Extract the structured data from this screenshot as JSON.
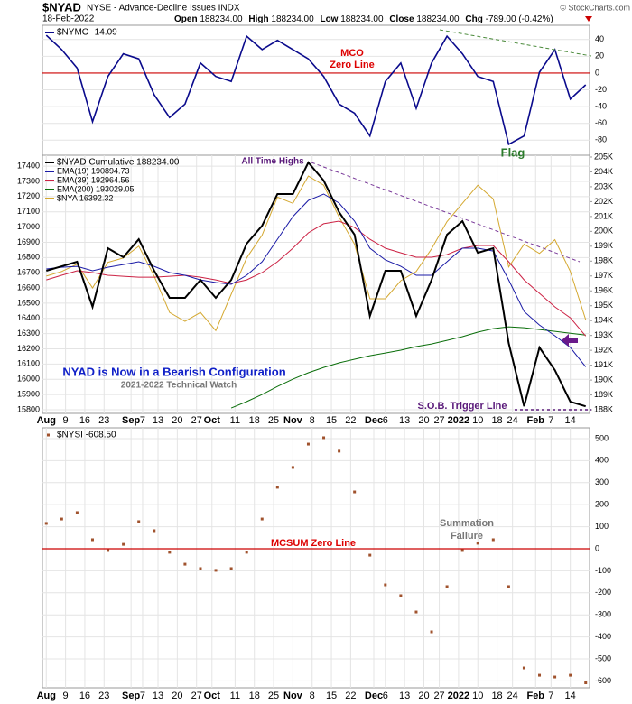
{
  "header": {
    "symbol": "$NYAD",
    "description": "NYSE - Advance-Decline Issues INDX",
    "copyright": "© StockCharts.com",
    "date": "18-Feb-2022",
    "quote": [
      [
        "Open",
        "188234.00"
      ],
      [
        "High",
        "188234.00"
      ],
      [
        "Low",
        "188234.00"
      ],
      [
        "Close",
        "188234.00"
      ],
      [
        "Chg",
        "-789.00 (-0.42%)"
      ]
    ]
  },
  "chart_data": [
    {
      "type": "line",
      "x": [
        0,
        4,
        8,
        12,
        16,
        20,
        24,
        28,
        32,
        36,
        40,
        44,
        48,
        52,
        56,
        60,
        64,
        68,
        72,
        76,
        80,
        84,
        88,
        92,
        96,
        100,
        104,
        108,
        112,
        116,
        120,
        124,
        128,
        132,
        136,
        140
      ],
      "xlim": [
        -1,
        141
      ],
      "ylim": [
        -98,
        57
      ],
      "yticks": [
        -80,
        -60,
        -40,
        -20,
        0,
        20,
        40
      ],
      "grid": true,
      "hline": {
        "value": 0,
        "color": "#cc0000"
      },
      "annotations": [
        "MCO",
        "Zero Line",
        "Flag"
      ],
      "series": [
        {
          "name": "$NYMO -14.09",
          "color": "#0a0a8c",
          "values": [
            45,
            28,
            6,
            -58,
            -4,
            23,
            17,
            -26,
            -53,
            -37,
            12,
            -4,
            -10,
            44,
            28,
            39,
            28,
            17,
            -4,
            -37,
            -48,
            -75,
            -10,
            12,
            -42,
            12,
            44,
            23,
            -4,
            -10,
            -85,
            -75,
            1,
            28,
            -31,
            -14.09
          ]
        }
      ]
    },
    {
      "type": "line",
      "x": [
        0,
        4,
        8,
        12,
        16,
        20,
        24,
        28,
        32,
        36,
        40,
        44,
        48,
        52,
        56,
        60,
        64,
        68,
        72,
        76,
        80,
        84,
        88,
        92,
        96,
        100,
        104,
        108,
        112,
        116,
        120,
        124,
        128,
        132,
        136,
        140
      ],
      "xlim": [
        -1,
        141
      ],
      "ylim": [
        15776,
        17472
      ],
      "yticks": [
        15800,
        15900,
        16000,
        16100,
        16200,
        16300,
        16400,
        16500,
        16600,
        16700,
        16800,
        16900,
        17000,
        17100,
        17200,
        17300,
        17400
      ],
      "y2lim": [
        187760,
        205120
      ],
      "y2ticks": [
        {
          "value": 188000,
          "label": "188K"
        },
        {
          "value": 189000,
          "label": "189K"
        },
        {
          "value": 190000,
          "label": "190K"
        },
        {
          "value": 191000,
          "label": "191K"
        },
        {
          "value": 192000,
          "label": "192K"
        },
        {
          "value": 193000,
          "label": "193K"
        },
        {
          "value": 194000,
          "label": "194K"
        },
        {
          "value": 195000,
          "label": "195K"
        },
        {
          "value": 196000,
          "label": "196K"
        },
        {
          "value": 197000,
          "label": "197K"
        },
        {
          "value": 198000,
          "label": "198K"
        },
        {
          "value": 199000,
          "label": "199K"
        },
        {
          "value": 200000,
          "label": "200K"
        },
        {
          "value": 201000,
          "label": "201K"
        },
        {
          "value": 202000,
          "label": "202K"
        },
        {
          "value": 203000,
          "label": "203K"
        },
        {
          "value": 204000,
          "label": "204K"
        },
        {
          "value": 205000,
          "label": "205K"
        }
      ],
      "xticks": [
        {
          "value": 0,
          "label": "Aug"
        },
        {
          "value": 5,
          "label": "9"
        },
        {
          "value": 10,
          "label": "16"
        },
        {
          "value": 15,
          "label": "23"
        },
        {
          "value": 22,
          "label": "Sep"
        },
        {
          "value": 25,
          "label": "7"
        },
        {
          "value": 29,
          "label": "13"
        },
        {
          "value": 34,
          "label": "20"
        },
        {
          "value": 39,
          "label": "27"
        },
        {
          "value": 43,
          "label": "Oct"
        },
        {
          "value": 49,
          "label": "11"
        },
        {
          "value": 54,
          "label": "18"
        },
        {
          "value": 59,
          "label": "25"
        },
        {
          "value": 64,
          "label": "Nov"
        },
        {
          "value": 69,
          "label": "8"
        },
        {
          "value": 74,
          "label": "15"
        },
        {
          "value": 79,
          "label": "22"
        },
        {
          "value": 85,
          "label": "Dec"
        },
        {
          "value": 88,
          "label": "6"
        },
        {
          "value": 93,
          "label": "13"
        },
        {
          "value": 98,
          "label": "20"
        },
        {
          "value": 102,
          "label": "27"
        },
        {
          "value": 107,
          "label": "2022"
        },
        {
          "value": 112,
          "label": "10"
        },
        {
          "value": 117,
          "label": "18"
        },
        {
          "value": 121,
          "label": "24"
        },
        {
          "value": 127,
          "label": "Feb"
        },
        {
          "value": 131,
          "label": "7"
        },
        {
          "value": 136,
          "label": "14"
        }
      ],
      "grid": true,
      "annotations": [
        "All Time Highs",
        "NYAD is Now in a Bearish Configuration",
        "2021-2022 Technical Watch",
        "S.O.B. Trigger Line"
      ],
      "series": [
        {
          "name": "$NYAD Cumulative 188234.00",
          "color": "#000000",
          "axis": "y2",
          "values": [
            197350,
            197650,
            197960,
            194920,
            198870,
            198260,
            199470,
            197350,
            195530,
            195530,
            196740,
            195530,
            196740,
            199170,
            200380,
            202510,
            202510,
            204630,
            203420,
            201290,
            199780,
            194310,
            197350,
            197350,
            194310,
            196740,
            199780,
            200690,
            198560,
            198870,
            192490,
            188240,
            192190,
            190670,
            188540,
            188234
          ]
        },
        {
          "name": "EMA(19) 190894.73",
          "color": "#1a1aa6",
          "axis": "y2",
          "values": [
            197470,
            197590,
            197650,
            197350,
            197590,
            197770,
            197960,
            197650,
            197230,
            197050,
            196740,
            196560,
            196440,
            197050,
            197960,
            199470,
            200990,
            202080,
            202510,
            201900,
            200690,
            198870,
            198080,
            197650,
            197050,
            197050,
            197960,
            198870,
            198870,
            198680,
            196740,
            194610,
            193700,
            192980,
            192190,
            190894.73
          ]
        },
        {
          "name": "EMA(39) 192964.56",
          "color": "#cc2244",
          "axis": "y2",
          "values": [
            196740,
            197050,
            197350,
            197230,
            197050,
            196980,
            196920,
            196920,
            196980,
            197050,
            196920,
            196740,
            196500,
            196740,
            197230,
            197960,
            198870,
            199900,
            200510,
            200690,
            200260,
            199470,
            198870,
            198560,
            198260,
            198260,
            198440,
            198870,
            199050,
            199050,
            197960,
            196740,
            195830,
            194920,
            194190,
            192964.56
          ]
        },
        {
          "name": "EMA(200) 193029.05",
          "color": "#0a6e0a",
          "axis": "y2",
          "values": [
            null,
            null,
            null,
            null,
            null,
            null,
            null,
            null,
            null,
            null,
            null,
            null,
            188120,
            188550,
            189030,
            189570,
            190060,
            190490,
            190850,
            191160,
            191400,
            191640,
            191820,
            192010,
            192250,
            192430,
            192670,
            192920,
            193220,
            193460,
            193580,
            193520,
            193400,
            193280,
            193150,
            193029.05
          ]
        },
        {
          "name": "$NYA 16392.32",
          "color": "#d4a830",
          "values": [
            16678,
            16708,
            16756,
            16600,
            16768,
            16797,
            16875,
            16678,
            16439,
            16380,
            16439,
            16320,
            16559,
            16797,
            16947,
            17197,
            17156,
            17335,
            17275,
            17066,
            16887,
            16529,
            16529,
            16648,
            16708,
            16857,
            17036,
            17156,
            17275,
            17185,
            16738,
            16887,
            16827,
            16917,
            16708,
            16392.32
          ]
        }
      ]
    },
    {
      "type": "scatter",
      "x": [
        0,
        4,
        8,
        12,
        16,
        20,
        24,
        28,
        32,
        36,
        40,
        44,
        48,
        52,
        56,
        60,
        64,
        68,
        72,
        76,
        80,
        84,
        88,
        92,
        96,
        100,
        104,
        108,
        112,
        116,
        120,
        124,
        128,
        132,
        136,
        140
      ],
      "xlim": [
        -1,
        141
      ],
      "ylim": [
        -631,
        549
      ],
      "yticks": [
        -600,
        -500,
        -400,
        -300,
        -200,
        -100,
        0,
        100,
        200,
        300,
        400,
        500
      ],
      "xticks": [
        {
          "value": 0,
          "label": "Aug"
        },
        {
          "value": 5,
          "label": "9"
        },
        {
          "value": 10,
          "label": "16"
        },
        {
          "value": 15,
          "label": "23"
        },
        {
          "value": 22,
          "label": "Sep"
        },
        {
          "value": 25,
          "label": "7"
        },
        {
          "value": 29,
          "label": "13"
        },
        {
          "value": 34,
          "label": "20"
        },
        {
          "value": 39,
          "label": "27"
        },
        {
          "value": 43,
          "label": "Oct"
        },
        {
          "value": 49,
          "label": "11"
        },
        {
          "value": 54,
          "label": "18"
        },
        {
          "value": 59,
          "label": "25"
        },
        {
          "value": 64,
          "label": "Nov"
        },
        {
          "value": 69,
          "label": "8"
        },
        {
          "value": 74,
          "label": "15"
        },
        {
          "value": 79,
          "label": "22"
        },
        {
          "value": 85,
          "label": "Dec"
        },
        {
          "value": 88,
          "label": "6"
        },
        {
          "value": 93,
          "label": "13"
        },
        {
          "value": 98,
          "label": "20"
        },
        {
          "value": 102,
          "label": "27"
        },
        {
          "value": 107,
          "label": "2022"
        },
        {
          "value": 112,
          "label": "10"
        },
        {
          "value": 117,
          "label": "18"
        },
        {
          "value": 121,
          "label": "24"
        },
        {
          "value": 127,
          "label": "Feb"
        },
        {
          "value": 131,
          "label": "7"
        },
        {
          "value": 136,
          "label": "14"
        }
      ],
      "grid": true,
      "hline": {
        "value": 0,
        "color": "#cc0000"
      },
      "annotations": [
        "MCSUM Zero Line",
        "Summation",
        "Failure"
      ],
      "series": [
        {
          "name": "$NYSI -608.50",
          "color": "#a0522d",
          "values": [
            115,
            135,
            164,
            41,
            -8,
            20,
            123,
            82,
            -16,
            -70,
            -90,
            -98,
            -90,
            -16,
            135,
            279,
            369,
            475,
            504,
            443,
            258,
            -29,
            -164,
            -213,
            -287,
            -377,
            -172,
            -8,
            25,
            41,
            -172,
            -541,
            -574,
            -582,
            -574,
            -608.5
          ]
        }
      ]
    }
  ]
}
